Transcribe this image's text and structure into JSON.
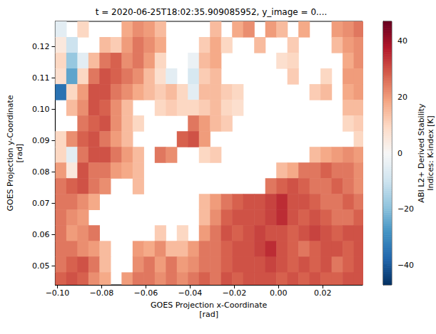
{
  "chart_data": {
    "type": "heatmap",
    "title": "t = 2020-06-25T18:02:35.909085952, y_image = 0....",
    "xlabel": "GOES Projection x-Coordinate\n[rad]",
    "ylabel": "GOES Projection y-Coordinate\n[rad]",
    "grid": false,
    "xlim": [
      -0.101,
      0.038
    ],
    "ylim": [
      0.044,
      0.128
    ],
    "xticks": [
      {
        "value": -0.1,
        "label": "−0.10"
      },
      {
        "value": -0.08,
        "label": "−0.08"
      },
      {
        "value": -0.06,
        "label": "−0.06"
      },
      {
        "value": -0.04,
        "label": "−0.04"
      },
      {
        "value": -0.02,
        "label": "−0.02"
      },
      {
        "value": 0,
        "label": "0.00"
      },
      0.02
    ],
    "yticks": [
      0.05,
      0.06,
      0.07,
      0.08,
      0.09,
      {
        "value": 0.1,
        "label": "0.10"
      },
      0.11,
      0.12
    ],
    "x": [
      -0.0985,
      -0.0935,
      -0.0885,
      -0.0835,
      -0.0785,
      -0.0735,
      -0.0685,
      -0.0635,
      -0.0585,
      -0.0535,
      -0.0485,
      -0.0435,
      -0.0385,
      -0.0335,
      -0.0285,
      -0.0235,
      -0.0185,
      -0.0135,
      -0.0085,
      -0.0035,
      0.0015,
      0.0065,
      0.0115,
      0.0165,
      0.0215,
      0.0265,
      0.0315,
      0.0365
    ],
    "y": [
      0.1255,
      0.1205,
      0.1155,
      0.1105,
      0.1055,
      0.1005,
      0.0955,
      0.0905,
      0.0855,
      0.0805,
      0.0755,
      0.0705,
      0.0655,
      0.0605,
      0.0555,
      0.0505,
      0.0455
    ],
    "values": [
      [
        -5,
        null,
        10,
        null,
        null,
        null,
        18,
        22,
        20,
        15,
        null,
        null,
        null,
        null,
        15,
        null,
        18,
        22,
        null,
        20,
        15,
        null,
        18,
        null,
        null,
        20,
        22,
        25
      ],
      [
        5,
        -10,
        null,
        null,
        15,
        12,
        20,
        25,
        22,
        18,
        null,
        null,
        null,
        12,
        18,
        10,
        null,
        null,
        15,
        null,
        null,
        12,
        null,
        null,
        null,
        15,
        20,
        22
      ],
      [
        10,
        -18,
        -5,
        15,
        25,
        28,
        22,
        25,
        20,
        10,
        null,
        null,
        -3,
        15,
        18,
        null,
        null,
        null,
        null,
        null,
        8,
        10,
        null,
        null,
        null,
        null,
        18,
        22
      ],
      [
        8,
        -25,
        10,
        25,
        30,
        28,
        25,
        22,
        15,
        8,
        -5,
        null,
        -8,
        12,
        15,
        null,
        null,
        null,
        null,
        null,
        null,
        12,
        null,
        null,
        10,
        null,
        20,
        20
      ],
      [
        -35,
        10,
        20,
        30,
        30,
        25,
        22,
        18,
        15,
        12,
        15,
        10,
        -5,
        15,
        15,
        12,
        10,
        null,
        null,
        null,
        null,
        null,
        null,
        12,
        15,
        null,
        18,
        20
      ],
      [
        null,
        15,
        22,
        30,
        28,
        22,
        15,
        null,
        null,
        10,
        12,
        10,
        10,
        12,
        15,
        10,
        8,
        null,
        null,
        null,
        null,
        null,
        null,
        null,
        null,
        null,
        15,
        15
      ],
      [
        null,
        null,
        25,
        28,
        30,
        22,
        15,
        10,
        null,
        null,
        null,
        null,
        25,
        20,
        15,
        12,
        null,
        null,
        null,
        null,
        null,
        null,
        null,
        null,
        null,
        null,
        10,
        12
      ],
      [
        10,
        22,
        28,
        30,
        25,
        20,
        15,
        null,
        null,
        null,
        null,
        28,
        30,
        20,
        null,
        null,
        null,
        null,
        null,
        null,
        null,
        null,
        null,
        null,
        null,
        null,
        null,
        10
      ],
      [
        10,
        -5,
        25,
        30,
        30,
        25,
        20,
        15,
        null,
        25,
        22,
        null,
        null,
        10,
        12,
        null,
        null,
        null,
        null,
        null,
        null,
        null,
        null,
        15,
        18,
        20,
        22,
        20
      ],
      [
        20,
        5,
        30,
        25,
        25,
        20,
        18,
        15,
        null,
        null,
        null,
        null,
        null,
        null,
        null,
        null,
        null,
        null,
        null,
        null,
        15,
        18,
        25,
        25,
        28,
        25,
        25,
        22
      ],
      [
        25,
        28,
        30,
        25,
        22,
        null,
        null,
        15,
        null,
        null,
        null,
        null,
        null,
        null,
        null,
        null,
        null,
        null,
        null,
        25,
        28,
        30,
        28,
        25,
        25,
        28,
        25,
        22
      ],
      [
        25,
        25,
        22,
        18,
        null,
        null,
        null,
        null,
        null,
        null,
        null,
        null,
        null,
        15,
        20,
        25,
        28,
        30,
        30,
        32,
        35,
        30,
        30,
        28,
        25,
        25,
        28,
        25
      ],
      [
        25,
        22,
        20,
        null,
        null,
        null,
        null,
        null,
        null,
        null,
        null,
        null,
        null,
        15,
        22,
        28,
        30,
        30,
        30,
        32,
        35,
        30,
        28,
        30,
        28,
        25,
        25,
        28
      ],
      [
        25,
        20,
        22,
        25,
        null,
        null,
        null,
        null,
        null,
        12,
        null,
        10,
        null,
        20,
        25,
        30,
        28,
        30,
        32,
        30,
        30,
        28,
        30,
        32,
        30,
        28,
        30,
        30
      ],
      [
        25,
        25,
        22,
        20,
        15,
        null,
        null,
        20,
        18,
        22,
        15,
        15,
        20,
        25,
        25,
        28,
        30,
        30,
        32,
        35,
        30,
        28,
        25,
        28,
        30,
        30,
        28,
        30
      ],
      [
        25,
        28,
        30,
        25,
        15,
        null,
        null,
        22,
        25,
        20,
        25,
        20,
        22,
        25,
        25,
        28,
        30,
        30,
        30,
        32,
        30,
        28,
        30,
        28,
        30,
        25,
        28,
        30
      ],
      [
        28,
        30,
        28,
        22,
        18,
        null,
        20,
        25,
        25,
        22,
        25,
        22,
        25,
        28,
        25,
        30,
        28,
        30,
        30,
        30,
        28,
        30,
        28,
        30,
        28,
        28,
        30,
        30
      ]
    ],
    "colorbar": {
      "label": "ABI L2+ Derived Stability\nIndices: K-index [K]",
      "range": [
        -47,
        47
      ],
      "ticks": [
        {
          "value": -40,
          "label": "−40"
        },
        {
          "value": -20,
          "label": "−20"
        },
        0,
        20,
        40
      ]
    }
  }
}
